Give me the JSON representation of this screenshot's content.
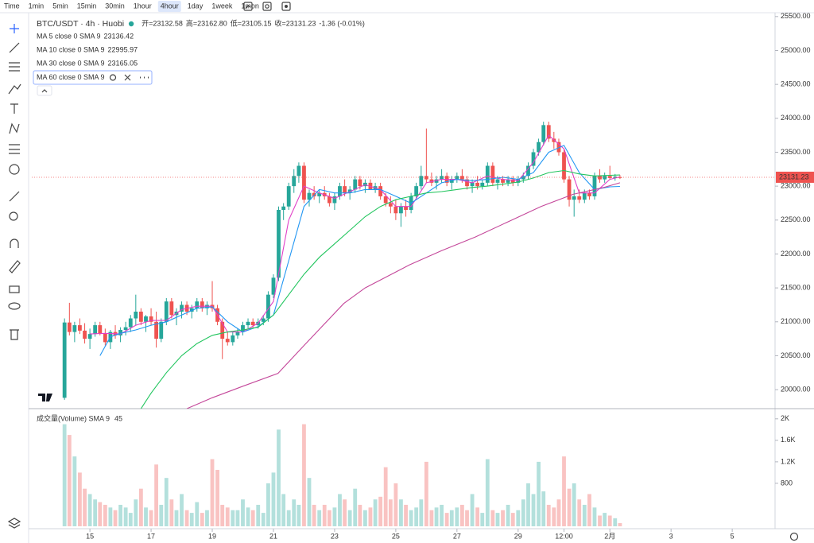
{
  "toolbar": {
    "items": [
      "Time",
      "1min",
      "5min",
      "15min",
      "30min",
      "1hour",
      "4hour",
      "1day",
      "1week",
      "1mon"
    ],
    "active": "4hour"
  },
  "chart_data": {
    "type": "candlestick",
    "title": "BTC/USDT · 4h · Huobi",
    "ohlc_legend": {
      "labels": [
        "开=",
        "高=",
        "低=",
        "收="
      ],
      "value_labels": [
        "23132.58",
        "23162.80",
        "23105.15",
        "23131.23"
      ],
      "change": "-1.36 (-0.01%)"
    },
    "x": [
      14.17,
      14.33,
      14.5,
      14.67,
      14.83,
      15,
      15.17,
      15.33,
      15.5,
      15.67,
      15.83,
      16,
      16.17,
      16.33,
      16.5,
      16.67,
      16.83,
      17,
      17.17,
      17.33,
      17.5,
      17.67,
      17.83,
      18,
      18.17,
      18.33,
      18.5,
      18.67,
      18.83,
      19,
      19.17,
      19.33,
      19.5,
      19.67,
      19.83,
      20,
      20.17,
      20.33,
      20.5,
      20.67,
      20.83,
      21,
      21.17,
      21.33,
      21.5,
      21.67,
      21.83,
      22,
      22.17,
      22.33,
      22.5,
      22.67,
      22.83,
      23,
      23.17,
      23.33,
      23.5,
      23.67,
      23.83,
      24,
      24.17,
      24.33,
      24.5,
      24.67,
      24.83,
      25,
      25.17,
      25.33,
      25.5,
      25.67,
      25.83,
      26,
      26.17,
      26.33,
      26.5,
      26.67,
      26.83,
      27,
      27.17,
      27.33,
      27.5,
      27.67,
      27.83,
      28,
      28.17,
      28.33,
      28.5,
      28.67,
      28.83,
      29,
      29.17,
      29.33,
      29.5,
      29.67,
      29.83,
      30,
      30.17,
      30.33,
      30.5,
      30.67,
      30.83,
      31,
      31.17,
      31.33,
      31.5,
      31.67,
      31.83,
      32,
      32.17,
      32.33
    ],
    "open": [
      19880,
      20990,
      20850,
      20950,
      20870,
      20750,
      20820,
      20950,
      20830,
      20700,
      20850,
      20800,
      20880,
      20920,
      21050,
      21150,
      21000,
      21080,
      21000,
      20750,
      21000,
      21300,
      21100,
      21150,
      21250,
      21150,
      21200,
      21300,
      21200,
      21250,
      21200,
      21000,
      20750,
      20700,
      20800,
      20850,
      20950,
      21000,
      20950,
      21000,
      21050,
      21400,
      21650,
      22650,
      22700,
      23000,
      23150,
      23300,
      22800,
      22900,
      22850,
      22900,
      22850,
      22750,
      22850,
      23000,
      22900,
      22950,
      23100,
      23000,
      23050,
      22950,
      23000,
      22850,
      22750,
      22700,
      22600,
      22700,
      22650,
      22850,
      23000,
      23150,
      23100,
      23050,
      23100,
      23150,
      23050,
      23100,
      23150,
      23100,
      23000,
      23050,
      23000,
      23050,
      23300,
      23050,
      23100,
      23050,
      23100,
      23050,
      23100,
      23150,
      23300,
      23500,
      23650,
      23900,
      23700,
      23650,
      23500,
      23100,
      22800,
      22850,
      22800,
      22900,
      22850,
      23150,
      23100,
      23150,
      23120,
      23132.58
    ],
    "high": [
      21050,
      21280,
      21000,
      21050,
      20980,
      20900,
      21000,
      21000,
      20900,
      20880,
      20950,
      20920,
      21000,
      21100,
      21400,
      21200,
      21100,
      21200,
      21150,
      21050,
      21350,
      21350,
      21200,
      21300,
      21300,
      21250,
      21350,
      21350,
      21300,
      21600,
      21250,
      21050,
      20850,
      20850,
      20900,
      21000,
      21050,
      21050,
      21050,
      21100,
      21450,
      21700,
      22700,
      22750,
      23050,
      23250,
      23350,
      23350,
      22950,
      23000,
      22950,
      23000,
      22900,
      22900,
      23050,
      23100,
      23000,
      23150,
      23150,
      23100,
      23100,
      23050,
      23050,
      22900,
      22850,
      22800,
      22750,
      22800,
      22900,
      23050,
      23300,
      23850,
      23200,
      23150,
      23250,
      23200,
      23150,
      23200,
      23250,
      23150,
      23100,
      23150,
      23100,
      23350,
      23350,
      23150,
      23150,
      23150,
      23150,
      23150,
      23200,
      23350,
      23550,
      23700,
      23950,
      23950,
      23800,
      23700,
      23550,
      23150,
      22950,
      22950,
      22950,
      22950,
      23200,
      23250,
      23200,
      23300,
      23180,
      23162.8
    ],
    "low": [
      19850,
      20800,
      20700,
      20820,
      20680,
      20600,
      20780,
      20800,
      20650,
      20600,
      20750,
      20700,
      20800,
      20850,
      20950,
      20950,
      20850,
      20950,
      20620,
      20700,
      20950,
      21050,
      20950,
      21050,
      21100,
      21050,
      21150,
      21150,
      21100,
      21150,
      20950,
      20450,
      20650,
      20650,
      20750,
      20800,
      20900,
      20900,
      20900,
      20950,
      21000,
      21350,
      21600,
      22500,
      22650,
      22900,
      23050,
      22750,
      22700,
      22800,
      22750,
      22800,
      22700,
      22650,
      22800,
      22850,
      22800,
      22900,
      22950,
      22900,
      22950,
      22900,
      22800,
      22700,
      22600,
      22500,
      22400,
      22550,
      22600,
      22800,
      22950,
      23050,
      23000,
      22950,
      23050,
      23000,
      22950,
      23050,
      23050,
      22950,
      22900,
      22950,
      22950,
      23000,
      23000,
      22950,
      23000,
      23000,
      23000,
      23000,
      23050,
      23100,
      23250,
      23450,
      23600,
      23650,
      23550,
      23450,
      23050,
      22700,
      22550,
      22750,
      22750,
      22800,
      22800,
      23050,
      23050,
      23100,
      23080,
      23105.15
    ],
    "close": [
      20990,
      20850,
      20950,
      20870,
      20750,
      20820,
      20950,
      20830,
      20700,
      20850,
      20800,
      20880,
      20920,
      21050,
      21150,
      21000,
      21080,
      21000,
      20750,
      21000,
      21300,
      21100,
      21150,
      21250,
      21150,
      21200,
      21300,
      21200,
      21250,
      21200,
      21000,
      20750,
      20700,
      20800,
      20850,
      20950,
      21000,
      20950,
      21000,
      21050,
      21400,
      21650,
      22650,
      22700,
      23000,
      23150,
      23300,
      22800,
      22900,
      22850,
      22900,
      22850,
      22750,
      22850,
      23000,
      22900,
      22950,
      23100,
      23000,
      23050,
      22950,
      23000,
      22850,
      22750,
      22700,
      22600,
      22700,
      22650,
      22850,
      23000,
      23150,
      23100,
      23050,
      23100,
      23150,
      23050,
      23100,
      23150,
      23100,
      23000,
      23050,
      23000,
      23050,
      23300,
      23050,
      23100,
      23050,
      23100,
      23050,
      23100,
      23150,
      23300,
      23500,
      23650,
      23900,
      23700,
      23650,
      23500,
      23100,
      22800,
      22850,
      22800,
      22900,
      22850,
      23150,
      23100,
      23150,
      23120,
      23140,
      23131.23
    ],
    "up_color": "#26a69a",
    "down_color": "#ef5350",
    "series": [
      {
        "name": "MA 5 close 0 SMA 9",
        "color": "#e040c8",
        "show_value": true,
        "x": [
          15,
          15.5,
          16,
          16.5,
          17,
          17.5,
          18,
          18.5,
          19,
          19.5,
          20,
          20.5,
          21,
          21.5,
          22,
          22.5,
          23,
          23.5,
          24,
          24.5,
          25,
          25.5,
          26,
          26.5,
          27,
          27.5,
          28,
          28.5,
          29,
          29.5,
          30,
          30.5,
          31,
          31.5,
          32,
          32.33
        ],
        "values": [
          20820,
          20830,
          20820,
          20950,
          21020,
          21020,
          21180,
          21230,
          21230,
          20850,
          20850,
          20980,
          21300,
          22500,
          23000,
          22900,
          22820,
          22920,
          23020,
          22950,
          22700,
          22700,
          23050,
          23100,
          23100,
          23050,
          23150,
          23100,
          23080,
          23350,
          23750,
          23550,
          22900,
          22900,
          23100,
          23136.42
        ]
      },
      {
        "name": "MA 10 close 0 SMA 9",
        "color": "#2196f3",
        "show_value": true,
        "x": [
          15.33,
          15.67,
          16,
          16.5,
          17,
          17.5,
          18,
          18.5,
          19,
          19.5,
          20,
          20.5,
          21,
          21.5,
          22,
          22.5,
          23,
          23.5,
          24,
          24.5,
          25,
          25.5,
          26,
          26.5,
          27,
          27.5,
          28,
          28.5,
          29,
          29.5,
          30,
          30.5,
          31,
          31.5,
          32,
          32.33
        ],
        "values": [
          20500,
          20780,
          20830,
          20880,
          20950,
          21000,
          21100,
          21200,
          21220,
          21000,
          20850,
          20930,
          21100,
          21900,
          22700,
          22950,
          22900,
          22900,
          22950,
          22950,
          22850,
          22750,
          22900,
          23050,
          23100,
          23080,
          23100,
          23130,
          23100,
          23200,
          23500,
          23600,
          23200,
          22950,
          22990,
          22995.97
        ]
      },
      {
        "name": "MA 30 close 0 SMA 9",
        "color": "#22c55e",
        "show_value": true,
        "x": [
          16.67,
          17,
          17.5,
          18,
          18.5,
          19,
          19.5,
          20,
          20.5,
          21,
          21.5,
          22,
          22.5,
          23,
          23.5,
          24,
          24.5,
          25,
          25.5,
          26,
          26.5,
          27,
          27.5,
          28,
          28.5,
          29,
          29.5,
          30,
          30.5,
          31,
          31.5,
          32,
          32.33
        ],
        "values": [
          19720,
          19950,
          20250,
          20500,
          20680,
          20800,
          20850,
          20880,
          20920,
          21100,
          21400,
          21700,
          21950,
          22150,
          22350,
          22550,
          22700,
          22800,
          22850,
          22900,
          22920,
          22950,
          22980,
          23000,
          23030,
          23060,
          23120,
          23200,
          23230,
          23180,
          23150,
          23160,
          23165.05
        ]
      },
      {
        "name": "MA 60 close 0 SMA 9",
        "color": "#c4479a",
        "show_value": false,
        "x": [
          18.17,
          19,
          20,
          21.15,
          22,
          23.3,
          24,
          25.45,
          26.5,
          27.6,
          28.7,
          29.75,
          30.8,
          31.8,
          32.33
        ],
        "values": [
          19720,
          19880,
          20050,
          20240,
          20650,
          21270,
          21500,
          21840,
          22050,
          22250,
          22480,
          22700,
          22880,
          22980,
          23050
        ]
      }
    ],
    "xlim": [
      13.1,
      37.4
    ],
    "xticks": [
      15,
      17,
      19,
      21,
      23,
      25,
      27,
      29,
      {
        "value": 30.5,
        "label": "12:00"
      },
      {
        "value": 32,
        "label": "2月"
      },
      {
        "value": 34,
        "label": "3"
      },
      {
        "value": 36,
        "label": "5"
      }
    ],
    "ylim": [
      19720,
      25580
    ],
    "yticks": [
      {
        "value": 20000,
        "label": "20000.00"
      },
      {
        "value": 20500,
        "label": "20500.00"
      },
      {
        "value": 21000,
        "label": "21000.00"
      },
      {
        "value": 21500,
        "label": "21500.00"
      },
      {
        "value": 22000,
        "label": "22000.00"
      },
      {
        "value": 22500,
        "label": "22500.00"
      },
      {
        "value": 23000,
        "label": "23000.00"
      },
      {
        "value": 23500,
        "label": "23500.00"
      },
      {
        "value": 24000,
        "label": "24000.00"
      },
      {
        "value": 24500,
        "label": "24500.00"
      },
      {
        "value": 25000,
        "label": "25000.00"
      },
      {
        "value": 25500,
        "label": "25500.00"
      }
    ],
    "last_price_line": true,
    "volume": {
      "title": "成交量(Volume) SMA 9",
      "sma_label": "45",
      "values": [
        1900,
        1700,
        1300,
        1000,
        700,
        600,
        500,
        450,
        400,
        350,
        300,
        400,
        350,
        250,
        500,
        700,
        350,
        300,
        1150,
        400,
        900,
        500,
        300,
        600,
        300,
        250,
        450,
        250,
        300,
        1250,
        1050,
        400,
        350,
        300,
        300,
        500,
        350,
        300,
        400,
        250,
        800,
        1000,
        1800,
        600,
        300,
        500,
        400,
        1900,
        900,
        400,
        300,
        400,
        300,
        350,
        600,
        500,
        300,
        700,
        400,
        300,
        350,
        500,
        550,
        1100,
        500,
        800,
        500,
        400,
        300,
        350,
        500,
        1200,
        300,
        350,
        400,
        250,
        300,
        350,
        400,
        300,
        600,
        350,
        250,
        1250,
        300,
        250,
        300,
        400,
        250,
        300,
        500,
        800,
        600,
        1200,
        650,
        400,
        350,
        500,
        1300,
        700,
        800,
        500,
        400,
        600,
        350,
        200,
        250,
        200,
        150,
        60
      ],
      "ylim": [
        0,
        2160
      ],
      "yticks": [
        800,
        {
          "value": 1200,
          "label": "1.2K"
        },
        {
          "value": 1600,
          "label": "1.6K"
        },
        {
          "value": 2000,
          "label": "2K"
        }
      ]
    }
  }
}
